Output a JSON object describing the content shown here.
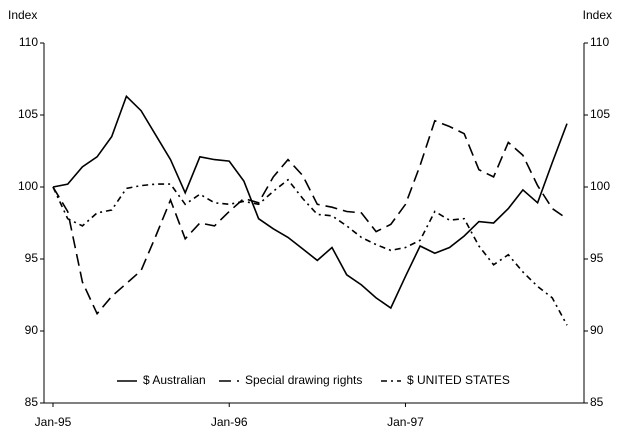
{
  "chart_data": {
    "type": "line",
    "y_label": "Index",
    "y2_label": "Index",
    "categories": [
      "Jan-95",
      null,
      null,
      null,
      null,
      null,
      null,
      null,
      null,
      null,
      null,
      null,
      "Jan-96",
      null,
      null,
      null,
      null,
      null,
      null,
      null,
      null,
      null,
      null,
      null,
      "Jan-97",
      null,
      null,
      null,
      null,
      null,
      null,
      null,
      null,
      null,
      null,
      null
    ],
    "series": [
      {
        "name": "$ Australian",
        "color": "#000000",
        "style": "solid",
        "values": [
          100,
          100.2,
          101.4,
          102.1,
          103.5,
          106.3,
          105.3,
          103.6,
          101.9,
          99.6,
          102.1,
          101.9,
          101.8,
          100.4,
          97.8,
          97.1,
          96.5,
          95.7,
          94.9,
          95.8,
          93.9,
          93.2,
          92.3,
          91.6,
          93.8,
          95.9,
          95.4,
          95.8,
          96.6,
          97.6,
          97.5,
          98.5,
          99.8,
          98.9,
          101.7,
          104.4
        ]
      },
      {
        "name": "Special drawing rights",
        "color": "#000000",
        "style": "dashed",
        "values": [
          100,
          98.3,
          93.4,
          91.2,
          92.4,
          93.3,
          94.2,
          96.6,
          99.1,
          96.4,
          97.5,
          97.3,
          98.3,
          99.2,
          98.9,
          100.7,
          101.9,
          100.8,
          98.8,
          98.6,
          98.3,
          98.2,
          96.9,
          97.4,
          98.8,
          101.5,
          104.6,
          104.2,
          103.7,
          101.2,
          100.7,
          103.1,
          102.2,
          100.1,
          98.5,
          97.8
        ]
      },
      {
        "name": "$ UNITED STATES",
        "color": "#000000",
        "style": "dashdot",
        "values": [
          100,
          97.8,
          97.3,
          98.2,
          98.4,
          99.9,
          100.1,
          100.2,
          100.2,
          98.8,
          99.5,
          98.9,
          98.8,
          99.0,
          98.8,
          99.7,
          100.5,
          99.2,
          98.1,
          98.0,
          97.3,
          96.5,
          96.0,
          95.6,
          95.8,
          96.3,
          98.3,
          97.7,
          97.8,
          95.9,
          94.6,
          95.3,
          94.1,
          93.1,
          92.3,
          90.4
        ]
      }
    ],
    "ylim": [
      85,
      110
    ],
    "yticks": [
      85,
      90,
      95,
      100,
      105,
      110
    ],
    "y2lim": [
      85,
      110
    ],
    "y2ticks": [
      85,
      90,
      95,
      100,
      105,
      110
    ],
    "grid": false,
    "legend": "bottom"
  }
}
